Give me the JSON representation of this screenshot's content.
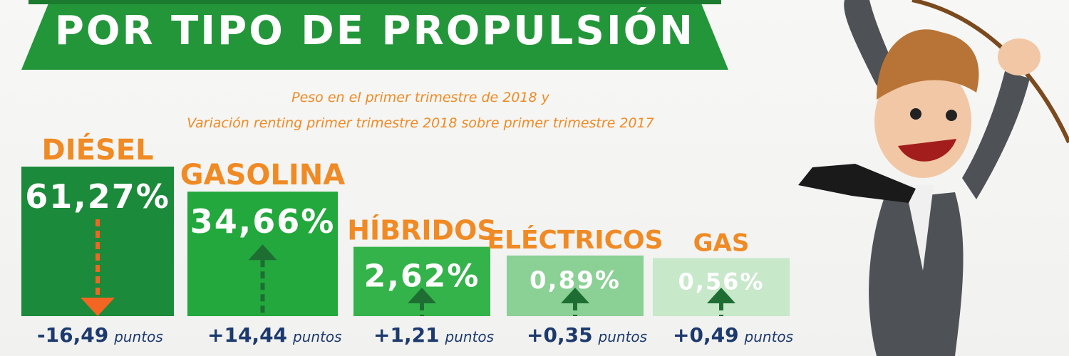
{
  "header": {
    "title": "POR TIPO DE PROPULSIÓN",
    "subtitle_line1": "Peso en el primer trimestre de 2018 y",
    "subtitle_line2": "Variación renting primer trimestre 2018 sobre primer trimestre 2017"
  },
  "chart_data": {
    "type": "bar",
    "title": "POR TIPO DE PROPULSIÓN",
    "subtitle": "Peso en el primer trimestre de 2018 y Variación renting primer trimestre 2018 sobre primer trimestre 2017",
    "categories": [
      "DIÉSEL",
      "GASOLINA",
      "HÍBRIDOS",
      "ELÉCTRICOS",
      "GAS"
    ],
    "series": [
      {
        "values": [
          61.27,
          34.66,
          2.62,
          0.89,
          0.56
        ],
        "labels": [
          "61,27%",
          "34,66%",
          "2,62%",
          "0,89%",
          "0,56%"
        ]
      }
    ],
    "variation": {
      "values": [
        -16.49,
        14.44,
        1.21,
        0.35,
        0.49
      ],
      "labels": [
        "-16,49",
        "+14,44",
        "+1,21",
        "+0,35",
        "+0,49"
      ],
      "unit": "puntos"
    },
    "colors": {
      "bars": [
        "#1b8a3a",
        "#22a83c",
        "#34b34a",
        "#8bd095",
        "#c7e8c9"
      ],
      "category_label": "#f08a24",
      "down_arrow": "#f26522",
      "up_arrow": "#1e6e33",
      "variation_text": "#1d3a6e"
    }
  }
}
